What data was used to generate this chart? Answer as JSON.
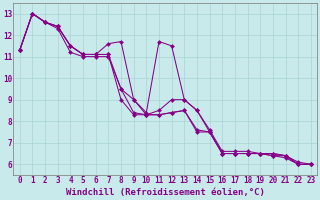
{
  "xlabel": "Windchill (Refroidissement éolien,°C)",
  "xlim_min": -0.5,
  "xlim_max": 23.5,
  "ylim_min": 5.5,
  "ylim_max": 13.5,
  "xticks": [
    0,
    1,
    2,
    3,
    4,
    5,
    6,
    7,
    8,
    9,
    10,
    11,
    12,
    13,
    14,
    15,
    16,
    17,
    18,
    19,
    20,
    21,
    22,
    23
  ],
  "yticks": [
    6,
    7,
    8,
    9,
    10,
    11,
    12,
    13
  ],
  "bg_color": "#c8eaea",
  "grid_color": "#aad4d4",
  "line_color": "#880088",
  "tick_fontsize": 5.5,
  "xlabel_fontsize": 6.5,
  "line1_x": [
    0,
    1,
    2,
    3,
    4,
    5,
    6,
    7,
    8,
    9,
    10,
    11,
    12,
    13,
    14,
    15,
    16,
    17,
    18,
    19,
    20,
    21,
    22,
    23
  ],
  "line1_y": [
    11.3,
    13.0,
    12.6,
    12.4,
    11.5,
    11.1,
    11.1,
    11.1,
    9.5,
    8.4,
    8.3,
    8.3,
    8.4,
    8.5,
    7.6,
    7.5,
    6.5,
    6.5,
    6.5,
    6.5,
    6.4,
    6.4,
    6.0,
    6.0
  ],
  "line2_x": [
    0,
    1,
    2,
    3,
    4,
    5,
    6,
    7,
    8,
    9,
    10,
    11,
    12,
    13,
    14,
    15,
    16,
    17,
    18,
    19,
    20,
    21,
    22,
    23
  ],
  "line2_y": [
    11.3,
    13.0,
    12.6,
    12.3,
    11.2,
    11.0,
    11.0,
    11.0,
    9.5,
    9.0,
    8.3,
    8.5,
    9.0,
    9.0,
    8.5,
    7.6,
    6.6,
    6.6,
    6.6,
    6.5,
    6.5,
    6.4,
    6.1,
    6.0
  ],
  "line3_x": [
    0,
    1,
    2,
    3,
    4,
    5,
    6,
    7,
    8,
    9,
    10,
    11,
    12,
    13,
    14,
    15,
    16,
    17,
    18,
    19,
    20,
    21,
    22,
    23
  ],
  "line3_y": [
    11.3,
    13.0,
    12.6,
    12.4,
    11.5,
    11.1,
    11.1,
    11.6,
    11.7,
    9.0,
    8.4,
    11.7,
    11.5,
    9.0,
    8.5,
    7.5,
    6.5,
    6.5,
    6.5,
    6.5,
    6.5,
    6.4,
    6.0,
    6.0
  ],
  "line4_x": [
    0,
    1,
    2,
    3,
    4,
    5,
    6,
    7,
    8,
    9,
    10,
    11,
    12,
    13,
    14,
    15,
    16,
    17,
    18,
    19,
    20,
    21,
    22,
    23
  ],
  "line4_y": [
    11.3,
    13.0,
    12.6,
    12.4,
    11.5,
    11.1,
    11.1,
    11.1,
    9.0,
    8.3,
    8.3,
    8.3,
    8.4,
    8.5,
    7.5,
    7.5,
    6.5,
    6.5,
    6.5,
    6.5,
    6.4,
    6.3,
    6.0,
    6.0
  ]
}
